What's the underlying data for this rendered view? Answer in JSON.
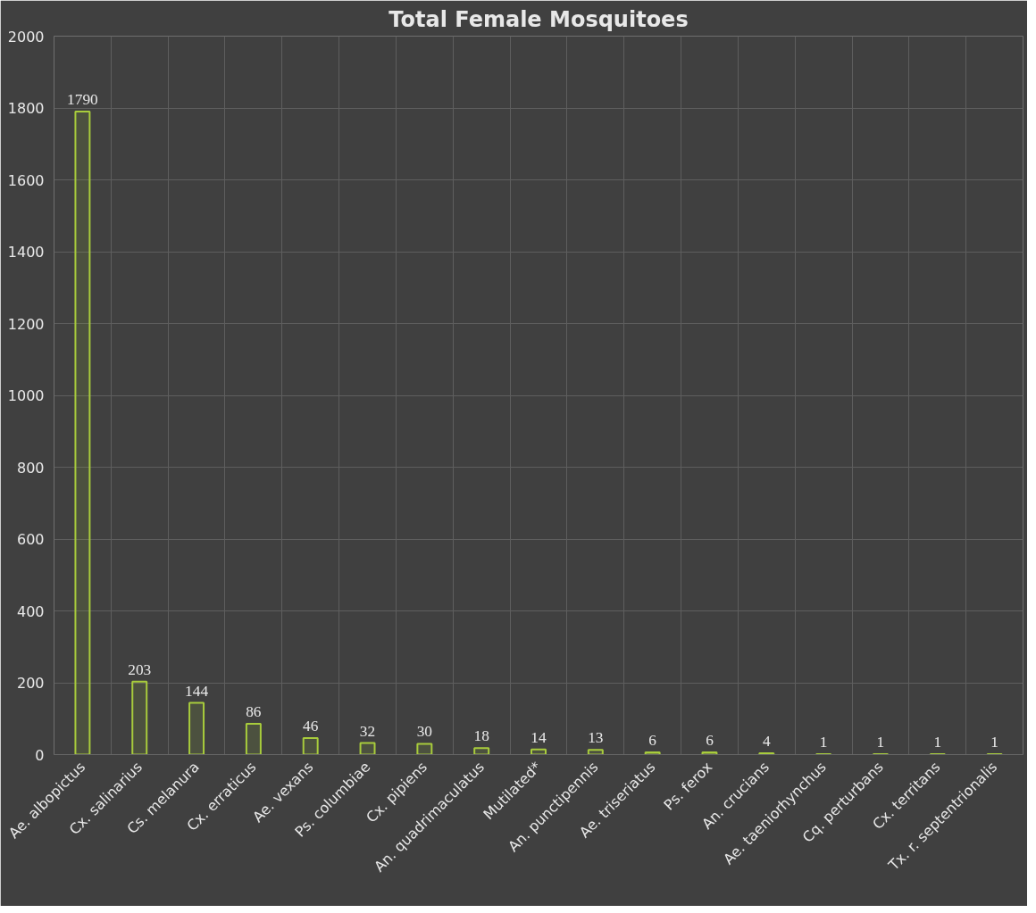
{
  "chart_data": {
    "type": "bar",
    "title": "Total Female Mosquitoes",
    "categories": [
      "Ae. albopictus",
      "Cx. salinarius",
      "Cs. melanura",
      "Cx. erraticus",
      "Ae. vexans",
      "Ps. columbiae",
      "Cx. pipiens",
      "An. quadrimaculatus",
      "Mutilated*",
      "An. punctipennis",
      "Ae. triseriatus",
      "Ps. ferox",
      "An. crucians",
      "Ae. taeniorhynchus",
      "Cq. perturbans",
      "Cx. territans",
      "Tx. r. septentrionalis"
    ],
    "values": [
      1790,
      203,
      144,
      86,
      46,
      32,
      30,
      18,
      14,
      13,
      6,
      6,
      4,
      1,
      1,
      1,
      1
    ],
    "color": "#a8cc3c",
    "ylim": [
      0,
      2000
    ],
    "yticks": [
      0,
      200,
      400,
      600,
      800,
      1000,
      1200,
      1400,
      1600,
      1800,
      2000
    ],
    "grid": true,
    "data_labels": true
  }
}
